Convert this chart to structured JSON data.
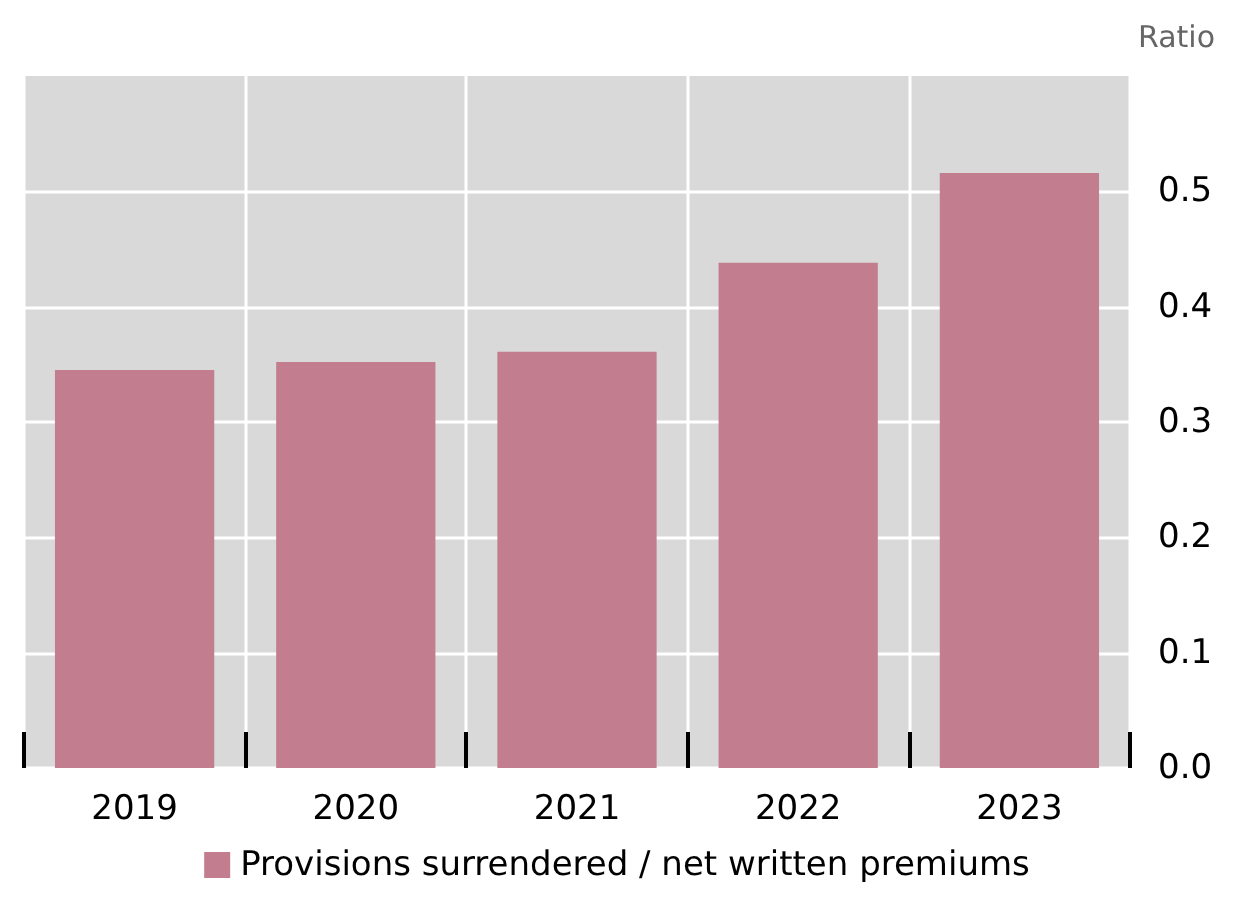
{
  "chart_data": {
    "type": "bar",
    "ylabel": "Ratio",
    "categories": [
      "2019",
      "2020",
      "2021",
      "2022",
      "2023"
    ],
    "series": [
      {
        "name": "Provisions surrendered / net written premiums",
        "color": "#c27d8e",
        "values": [
          0.345,
          0.352,
          0.361,
          0.438,
          0.516
        ]
      }
    ],
    "ylim": [
      0,
      0.6
    ],
    "yticks": [
      {
        "value": 0,
        "label": "0.0"
      },
      0.1,
      0.2,
      0.3,
      0.4,
      0.5
    ],
    "grid": true,
    "legend": "bottom"
  }
}
